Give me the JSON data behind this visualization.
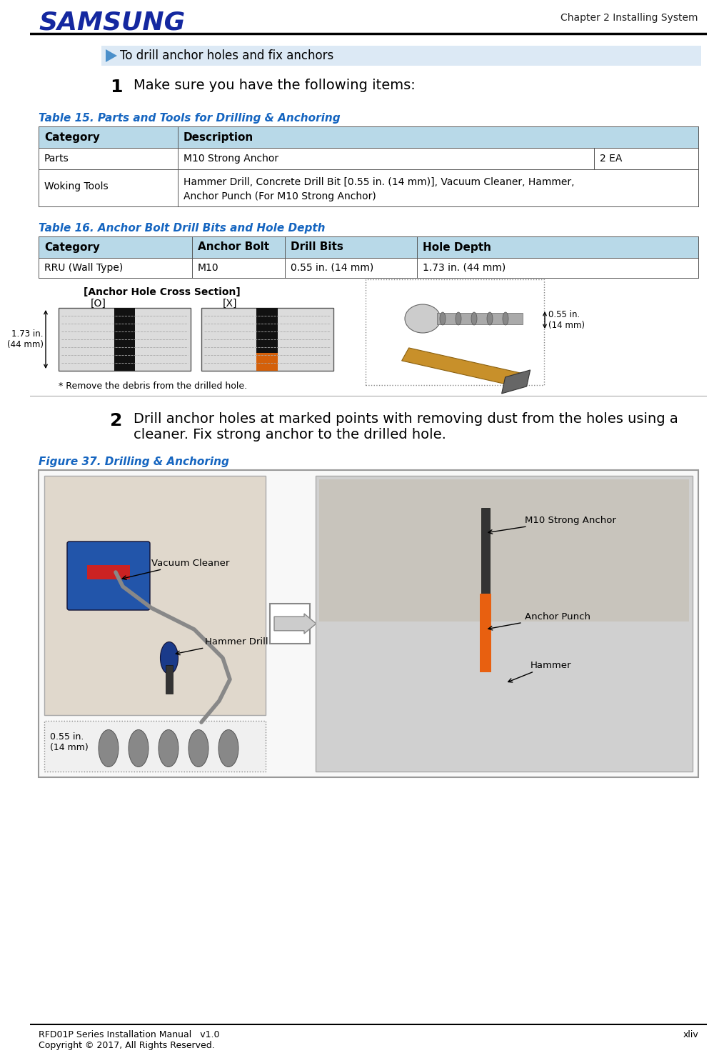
{
  "page_title_right": "Chapter 2 Installing System",
  "samsung_color": "#1428A0",
  "section_header_text": "To drill anchor holes and fix anchors",
  "section_header_bg": "#dce9f5",
  "step1_text": "Make sure you have the following items:",
  "table15_title": "Table 15. Parts and Tools for Drilling & Anchoring",
  "table15_header": [
    "Category",
    "Description"
  ],
  "table15_rows_col1": [
    "Parts",
    "Woking Tools"
  ],
  "table15_row1_col2": "M10 Strong Anchor",
  "table15_row1_col3": "2 EA",
  "table15_row2_col2": "Hammer Drill, Concrete Drill Bit [0.55 in. (14 mm)], Vacuum Cleaner, Hammer,\nAnchor Punch (For M10 Strong Anchor)",
  "table15_header_bg": "#b8d9e8",
  "table16_title": "Table 16. Anchor Bolt Drill Bits and Hole Depth",
  "table16_header": [
    "Category",
    "Anchor Bolt",
    "Drill Bits",
    "Hole Depth"
  ],
  "table16_rows": [
    [
      "RRU (Wall Type)",
      "M10",
      "0.55 in. (14 mm)",
      "1.73 in. (44 mm)"
    ]
  ],
  "table16_header_bg": "#b8d9e8",
  "cs_title": "[Anchor Hole Cross Section]",
  "cs_ok": "[O]",
  "cs_x": "[X]",
  "cs_depth": "1.73 in.\n(44 mm)",
  "cs_drill_label": "0.55 in.\n(14 mm)",
  "cs_note": "* Remove the debris from the drilled hole.",
  "step2_text_line1": "Drill anchor holes at marked points with removing dust from the holes using a",
  "step2_text_line2": "cleaner. Fix strong anchor to the drilled hole.",
  "figure_title": "Figure 37. Drilling & Anchoring",
  "lbl_vacuum": "Vacuum Cleaner",
  "lbl_hammer_drill": "Hammer Drill",
  "lbl_drill_size": "0.55 in.\n(14 mm)",
  "lbl_m10": "M10 Strong Anchor",
  "lbl_punch": "Anchor Punch",
  "lbl_hammer": "Hammer",
  "footer_left": "RFD01P Series Installation Manual   v1.0",
  "footer_right": "xliv",
  "footer_line2": "Copyright © 2017, All Rights Reserved.",
  "table_title_color": "#1565c0",
  "fig_border_color": "#aaaaaa",
  "left_panel_bg": "#e0d8cc",
  "right_panel_bg": "#d0d0d0"
}
